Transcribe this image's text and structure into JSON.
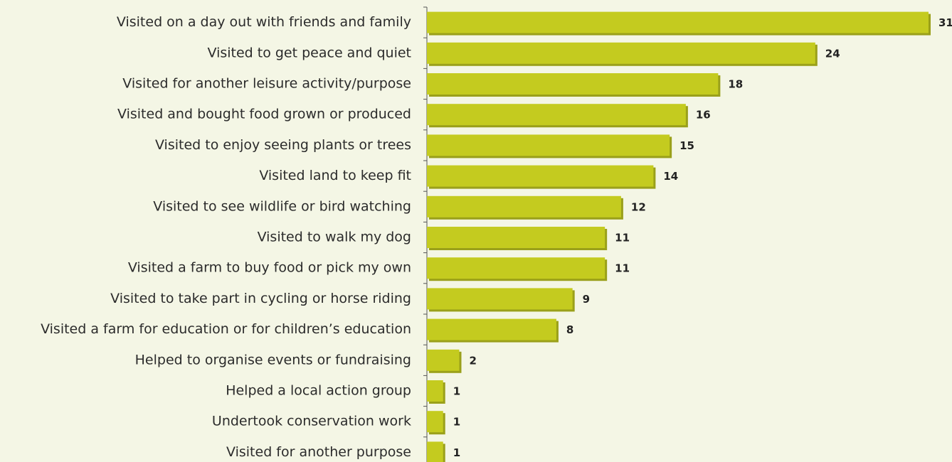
{
  "chart_data": {
    "type": "barh",
    "categories": [
      "Visited on a day out with friends and family",
      "Visited to get peace and quiet",
      "Visited for another leisure activity/purpose",
      "Visited and bought food grown or produced",
      "Visited to enjoy seeing plants or trees",
      "Visited land to keep fit",
      "Visited to see wildlife or bird watching",
      "Visited to walk my dog",
      "Visited a farm to buy food or pick my own",
      "Visited to take part in cycling or horse riding",
      "Visited a farm for education or for children’s education",
      "Helped to organise events or fundraising",
      "Helped a local action group",
      "Undertook conservation work",
      "Visited for another purpose"
    ],
    "values": [
      31,
      24,
      18,
      16,
      15,
      14,
      12,
      11,
      11,
      9,
      8,
      2,
      1,
      1,
      1
    ],
    "color": "#c4cb1f"
  }
}
